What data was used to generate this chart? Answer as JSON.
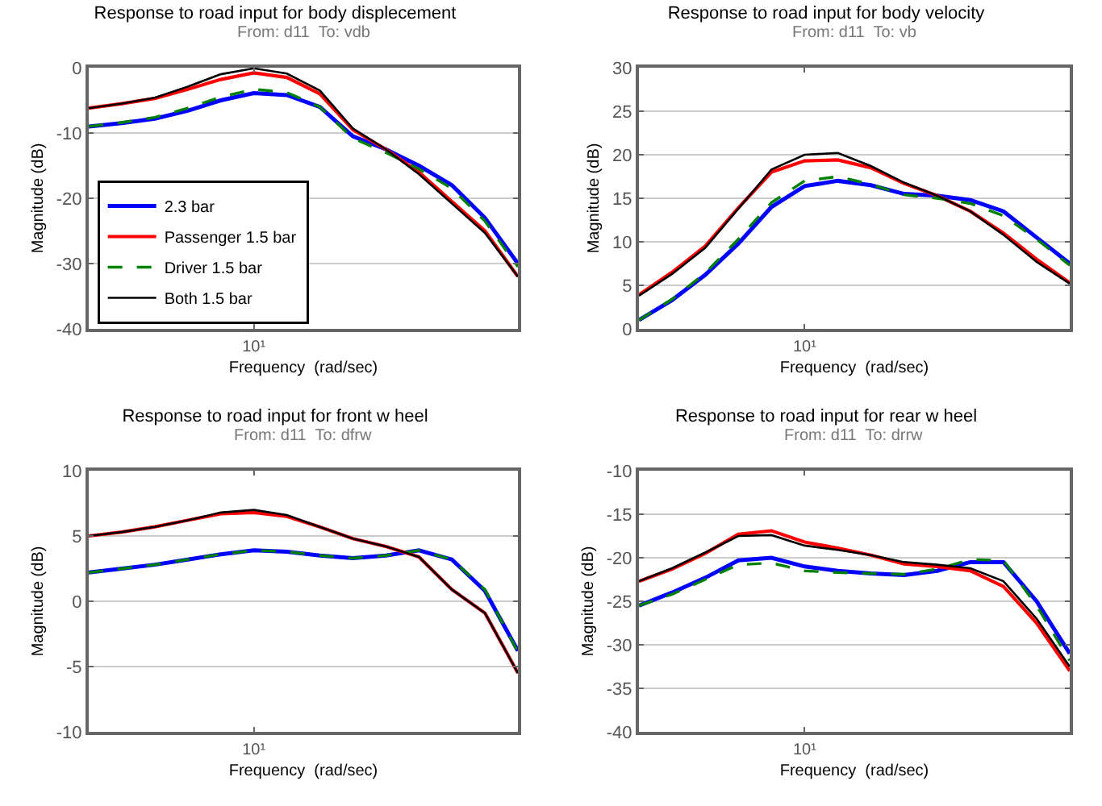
{
  "chart_data": [
    {
      "type": "line",
      "title": "Response to road input for body displecement",
      "subtitle": "From: d11  To: vdb",
      "xlabel": "Frequency  (rad/sec)",
      "ylabel": "Magnitude (dB)",
      "grid": "y",
      "legend": "bottom left",
      "categories": [
        null,
        null,
        null,
        null,
        null,
        "10¹",
        null,
        null,
        null,
        null,
        null,
        null,
        null,
        null
      ],
      "ylim": [
        -40,
        0
      ],
      "yticks": [
        -40,
        -30,
        -20,
        -10,
        0
      ],
      "series": [
        {
          "name": "2.3 bar",
          "color": "#0000ff",
          "values": [
            -9,
            -8.5,
            -7.8,
            -6.6,
            -5,
            -3.9,
            -4.2,
            -6,
            -10.5,
            -12.5,
            -15,
            -18,
            -23,
            -30
          ]
        },
        {
          "name": "Passenger 1.5 bar",
          "color": "#ff0000",
          "values": [
            -6.2,
            -5.5,
            -4.7,
            -3.3,
            -1.8,
            -0.8,
            -1.5,
            -4,
            -9.5,
            -12.5,
            -16,
            -20.5,
            -25,
            -32
          ]
        },
        {
          "name": "Driver 1.5 bar",
          "color": "#008000",
          "line_style": "dashed",
          "values": [
            -9,
            -8.4,
            -7.6,
            -6.2,
            -4.5,
            -3.3,
            -3.8,
            -6,
            -10.8,
            -13,
            -15.5,
            -18.5,
            -23.5,
            -30.5
          ]
        },
        {
          "name": "Both 1.5 bar",
          "color": "#000000",
          "values": [
            -6.2,
            -5.5,
            -4.6,
            -2.9,
            -1,
            -0.1,
            -0.9,
            -3.5,
            -9.3,
            -12.5,
            -16.3,
            -20.8,
            -25.3,
            -32
          ]
        }
      ]
    },
    {
      "type": "line",
      "title": "Response to road input for body velocity",
      "subtitle": "From: d11  To: vb",
      "xlabel": "Frequency  (rad/sec)",
      "ylabel": "Magnitude (dB)",
      "grid": "y",
      "categories": [
        null,
        null,
        null,
        null,
        null,
        "10¹",
        null,
        null,
        null,
        null,
        null,
        null,
        null,
        null
      ],
      "ylim": [
        0,
        30
      ],
      "yticks": [
        0,
        5,
        10,
        15,
        20,
        25,
        30
      ],
      "series": [
        {
          "color": "#0000ff",
          "values": [
            1,
            3.3,
            6.2,
            9.8,
            14,
            16.4,
            17,
            16.5,
            15.5,
            15.3,
            14.8,
            13.5,
            10.5,
            7.5
          ]
        },
        {
          "color": "#ff0000",
          "values": [
            3.9,
            6.5,
            9.5,
            13.9,
            18,
            19.3,
            19.4,
            18.5,
            16.7,
            15.3,
            13.5,
            11,
            8,
            5.3
          ]
        },
        {
          "color": "#008000",
          "line_style": "dashed",
          "values": [
            1,
            3.4,
            6.4,
            10.3,
            14.5,
            17,
            17.5,
            16.6,
            15.4,
            15,
            14.4,
            13,
            10.3,
            7.3
          ]
        },
        {
          "color": "#000000",
          "values": [
            3.8,
            6.3,
            9.3,
            13.8,
            18.3,
            20,
            20.2,
            18.7,
            16.8,
            15.3,
            13.5,
            10.8,
            7.7,
            5.2
          ]
        }
      ]
    },
    {
      "type": "line",
      "title": "Response to road input for front w heel",
      "subtitle": "From: d11  To: dfrw",
      "xlabel": "Frequency  (rad/sec)",
      "ylabel": "Magnitude (dB)",
      "grid": "y",
      "categories": [
        null,
        null,
        null,
        null,
        null,
        "10¹",
        null,
        null,
        null,
        null,
        null,
        null,
        null,
        null
      ],
      "ylim": [
        -10,
        10
      ],
      "yticks": [
        -10,
        -5,
        0,
        5,
        10
      ],
      "series": [
        {
          "color": "#0000ff",
          "values": [
            2.2,
            2.5,
            2.8,
            3.2,
            3.6,
            3.9,
            3.8,
            3.5,
            3.3,
            3.5,
            3.9,
            3.2,
            0.8,
            -3.8
          ]
        },
        {
          "color": "#ff0000",
          "values": [
            5,
            5.3,
            5.7,
            6.2,
            6.7,
            6.8,
            6.5,
            5.7,
            4.8,
            4.2,
            3.4,
            0.9,
            -0.9,
            -5.5
          ]
        },
        {
          "color": "#008000",
          "line_style": "dashed",
          "values": [
            2.2,
            2.5,
            2.8,
            3.2,
            3.6,
            3.9,
            3.8,
            3.5,
            3.3,
            3.5,
            3.9,
            3.2,
            0.9,
            -3.9
          ]
        },
        {
          "color": "#000000",
          "values": [
            5,
            5.3,
            5.7,
            6.2,
            6.8,
            7,
            6.6,
            5.7,
            4.8,
            4.2,
            3.4,
            0.9,
            -0.9,
            -5.5
          ]
        }
      ]
    },
    {
      "type": "line",
      "title": "Response to road input for rear w heel",
      "subtitle": "From: d11  To: drrw",
      "xlabel": "Frequency  (rad/sec)",
      "ylabel": "Magnitude (dB)",
      "grid": "y",
      "categories": [
        null,
        null,
        null,
        null,
        null,
        "10¹",
        null,
        null,
        null,
        null,
        null,
        null,
        null,
        null
      ],
      "ylim": [
        -40,
        -10
      ],
      "yticks": [
        -40,
        -35,
        -30,
        -25,
        -20,
        -15,
        -10
      ],
      "series": [
        {
          "color": "#0000ff",
          "values": [
            -25.5,
            -24,
            -22.3,
            -20.3,
            -20,
            -21,
            -21.5,
            -21.8,
            -22,
            -21.5,
            -20.5,
            -20.5,
            -25,
            -31
          ]
        },
        {
          "color": "#ff0000",
          "values": [
            -22.7,
            -21.3,
            -19.5,
            -17.3,
            -16.9,
            -18.2,
            -18.9,
            -19.7,
            -20.7,
            -21,
            -21.5,
            -23.3,
            -27.5,
            -33
          ]
        },
        {
          "color": "#008000",
          "line_style": "dashed",
          "values": [
            -25.5,
            -24.2,
            -22.5,
            -20.8,
            -20.6,
            -21.5,
            -21.7,
            -21.8,
            -21.9,
            -21.3,
            -20.2,
            -20.3,
            -25.5,
            -31.8
          ]
        },
        {
          "color": "#000000",
          "values": [
            -22.7,
            -21.2,
            -19.4,
            -17.5,
            -17.4,
            -18.6,
            -19.1,
            -19.7,
            -20.5,
            -20.8,
            -21.2,
            -22.7,
            -27,
            -32.5
          ]
        }
      ]
    }
  ]
}
